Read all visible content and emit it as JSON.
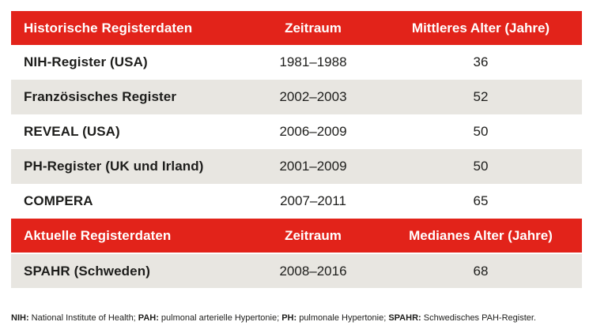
{
  "colors": {
    "accent_red": "#e2231a",
    "row_gray": "#e8e6e1",
    "text_dark": "#1d1d1b",
    "header_text": "#ffffff",
    "background": "#ffffff"
  },
  "table": {
    "sections": [
      {
        "header": {
          "title": "Historische Registerdaten",
          "period_label": "Zeitraum",
          "age_label": "Mittleres Alter (Jahre)"
        },
        "rows": [
          {
            "name": "NIH-Register (USA)",
            "period": "1981–1988",
            "age": "36"
          },
          {
            "name": "Französisches Register",
            "period": "2002–2003",
            "age": "52"
          },
          {
            "name": "REVEAL (USA)",
            "period": "2006–2009",
            "age": "50"
          },
          {
            "name": "PH-Register (UK und Irland)",
            "period": "2001–2009",
            "age": "50"
          },
          {
            "name": "COMPERA",
            "period": "2007–2011",
            "age": "65"
          }
        ]
      },
      {
        "header": {
          "title": "Aktuelle Registerdaten",
          "period_label": "Zeitraum",
          "age_label": "Medianes Alter (Jahre)"
        },
        "rows": [
          {
            "name": "SPAHR (Schweden)",
            "period": "2008–2016",
            "age": "68"
          }
        ]
      }
    ]
  },
  "footnote": {
    "parts": [
      {
        "abbr": "NIH:",
        "definition": " National Institute of Health; "
      },
      {
        "abbr": "PAH:",
        "definition": " pulmonal arterielle Hypertonie; "
      },
      {
        "abbr": "PH:",
        "definition": " pulmonale Hypertonie; "
      },
      {
        "abbr": "SPAHR:",
        "definition": " Schwedisches PAH-Register."
      }
    ]
  }
}
